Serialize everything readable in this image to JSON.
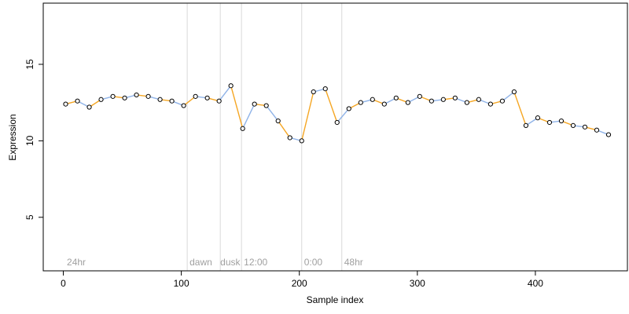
{
  "chart_data": {
    "type": "scatter",
    "title": "",
    "xlabel": "Sample index",
    "ylabel": "Expression",
    "xlim": [
      -17,
      478
    ],
    "ylim": [
      1.5,
      19
    ],
    "x_ticks": [
      0,
      100,
      200,
      300,
      400
    ],
    "y_ticks": [
      5,
      10,
      15
    ],
    "grid": false,
    "phase_boundaries": [
      105,
      133,
      151,
      202,
      236
    ],
    "phase_labels": [
      {
        "x": 3,
        "text": "24hr"
      },
      {
        "x": 107,
        "text": "dawn"
      },
      {
        "x": 133,
        "text": "dusk"
      },
      {
        "x": 153,
        "text": "12:00"
      },
      {
        "x": 204,
        "text": "0:00"
      },
      {
        "x": 238,
        "text": "48hr"
      }
    ],
    "series": [
      {
        "marker": "open-circle",
        "color": "#000000",
        "segment_colors": [
          "#f5a623",
          "#8fb3e8"
        ],
        "x": [
          2,
          12,
          22,
          32,
          42,
          52,
          62,
          72,
          82,
          92,
          102,
          112,
          122,
          132,
          142,
          152,
          162,
          172,
          182,
          192,
          202,
          212,
          222,
          232,
          242,
          252,
          262,
          272,
          282,
          292,
          302,
          312,
          322,
          332,
          342,
          352,
          362,
          372,
          382,
          392,
          402,
          412,
          422,
          432,
          442,
          452,
          462
        ],
        "y": [
          12.4,
          12.6,
          12.2,
          12.7,
          12.9,
          12.8,
          13.0,
          12.9,
          12.7,
          12.6,
          12.3,
          12.9,
          12.8,
          12.6,
          13.6,
          10.8,
          12.4,
          12.3,
          11.3,
          10.2,
          10.0,
          13.2,
          13.4,
          11.2,
          12.1,
          12.5,
          12.7,
          12.4,
          12.8,
          12.5,
          12.9,
          12.6,
          12.7,
          12.8,
          12.5,
          12.7,
          12.4,
          12.6,
          13.2,
          11.0,
          11.5,
          11.2,
          11.3,
          11.0,
          10.9,
          10.7,
          10.4
        ]
      }
    ]
  }
}
